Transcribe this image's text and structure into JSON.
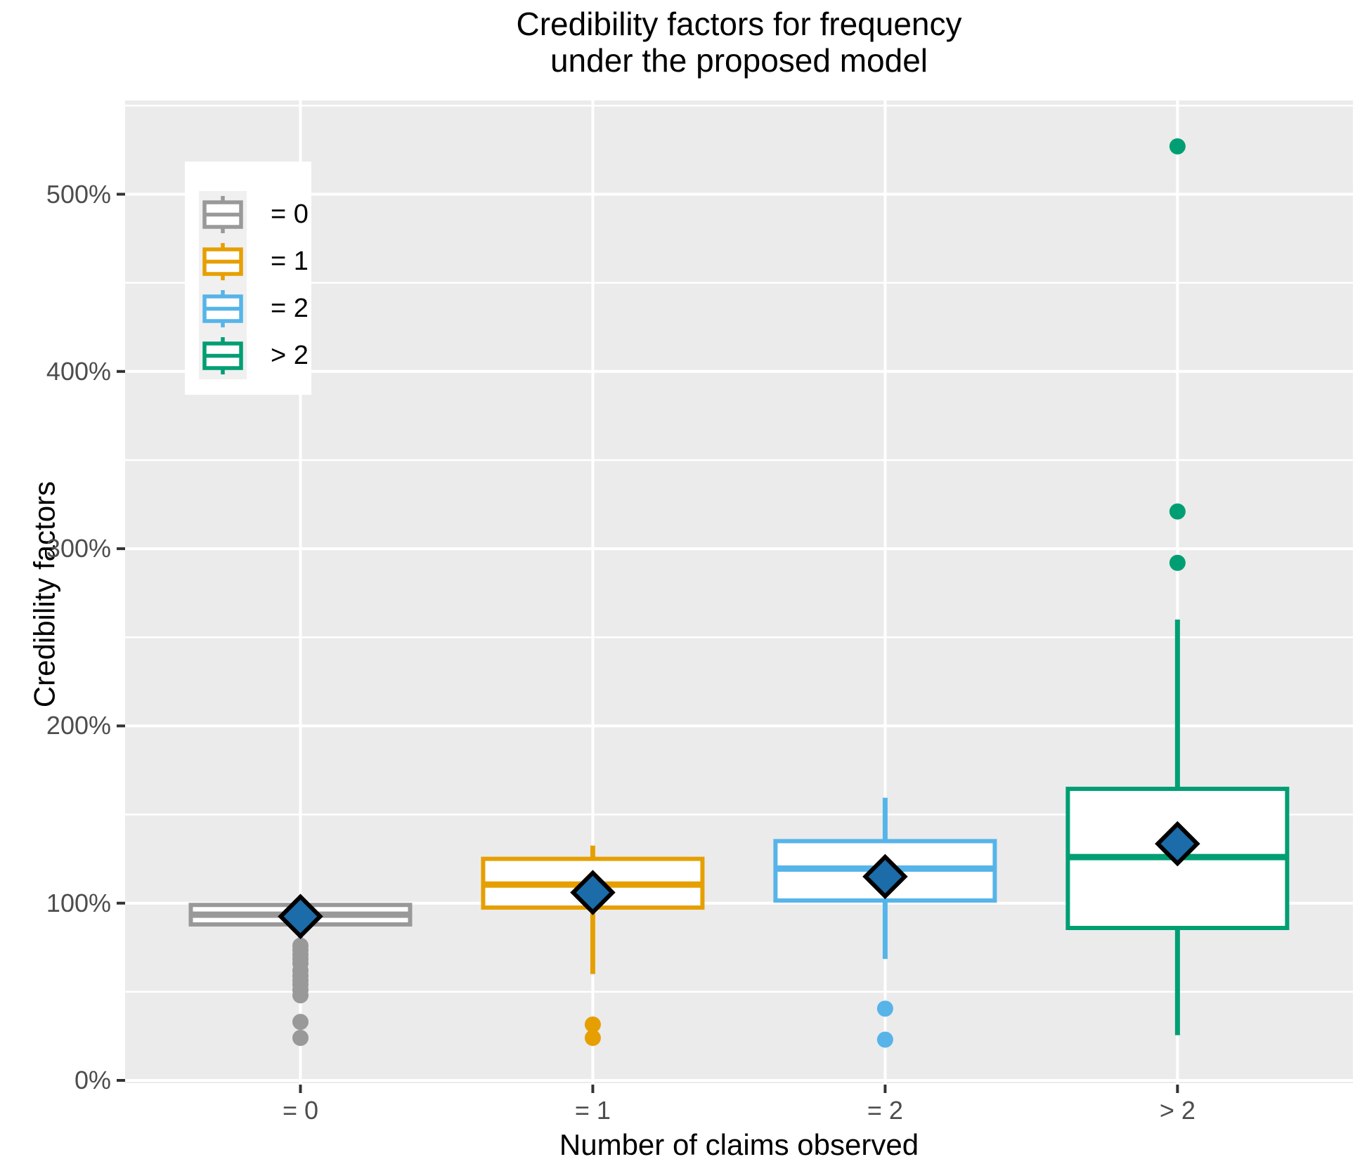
{
  "title": "Credibility factors for frequency\nunder the proposed model",
  "x_axis": {
    "title": "Number of claims observed",
    "tick_labels": [
      "= 0",
      "= 1",
      "= 2",
      "> 2"
    ]
  },
  "y_axis": {
    "title": "Credibility factors",
    "tick_labels": [
      "0%",
      "100%",
      "200%",
      "300%",
      "400%",
      "500%"
    ],
    "tick_values": [
      0,
      100,
      200,
      300,
      400,
      500
    ],
    "minor_tick_values": [
      50,
      150,
      250,
      350,
      450,
      550
    ]
  },
  "legend": {
    "items": [
      {
        "label": "= 0",
        "color": "#999999"
      },
      {
        "label": "= 1",
        "color": "#E69F00"
      },
      {
        "label": "= 2",
        "color": "#56B4E9"
      },
      {
        "label": "> 2",
        "color": "#009E73"
      }
    ]
  },
  "colors": {
    "panel_background": "#EBEBEB",
    "grid": "#FFFFFF",
    "tick_mark": "#333333",
    "tick_label": "#4d4d4d",
    "mean_diamond_fill": "#1B6CA8",
    "mean_diamond_stroke": "#000000",
    "box_fill": "#FFFFFF"
  },
  "chart_data": {
    "type": "boxplot",
    "title": "Credibility factors for frequency under the proposed model",
    "xlabel": "Number of claims observed",
    "ylabel": "Credibility factors",
    "unit": "percent",
    "ylim": [
      0,
      553
    ],
    "grid": "on",
    "legend_position": "top-left-inside",
    "categories": [
      "= 0",
      "= 1",
      "= 2",
      "> 2"
    ],
    "series": [
      {
        "label": "= 0",
        "color": "#999999",
        "whisker_low": 76.5,
        "q1": 88,
        "median": 93.5,
        "q3": 99,
        "whisker_high": 100.5,
        "mean": 92.5,
        "outliers": [
          76,
          73.5,
          71,
          68.5,
          66,
          62,
          59,
          56.5,
          54,
          51,
          48,
          33,
          24
        ]
      },
      {
        "label": "= 1",
        "color": "#E69F00",
        "whisker_low": 60,
        "q1": 97.5,
        "median": 110.5,
        "q3": 125,
        "whisker_high": 132.5,
        "mean": 106,
        "outliers": [
          31.5,
          24
        ]
      },
      {
        "label": "= 2",
        "color": "#56B4E9",
        "whisker_low": 68.5,
        "q1": 101.5,
        "median": 119.5,
        "q3": 135,
        "whisker_high": 159.5,
        "mean": 115,
        "outliers": [
          40.5,
          23
        ]
      },
      {
        "label": "> 2",
        "color": "#009E73",
        "whisker_low": 25.5,
        "q1": 86,
        "median": 126,
        "q3": 164.5,
        "whisker_high": 260,
        "mean": 133.5,
        "outliers": [
          292,
          321,
          527
        ]
      }
    ],
    "mean_marker": {
      "shape": "diamond",
      "fill": "#1B6CA8",
      "stroke": "#000000"
    }
  }
}
